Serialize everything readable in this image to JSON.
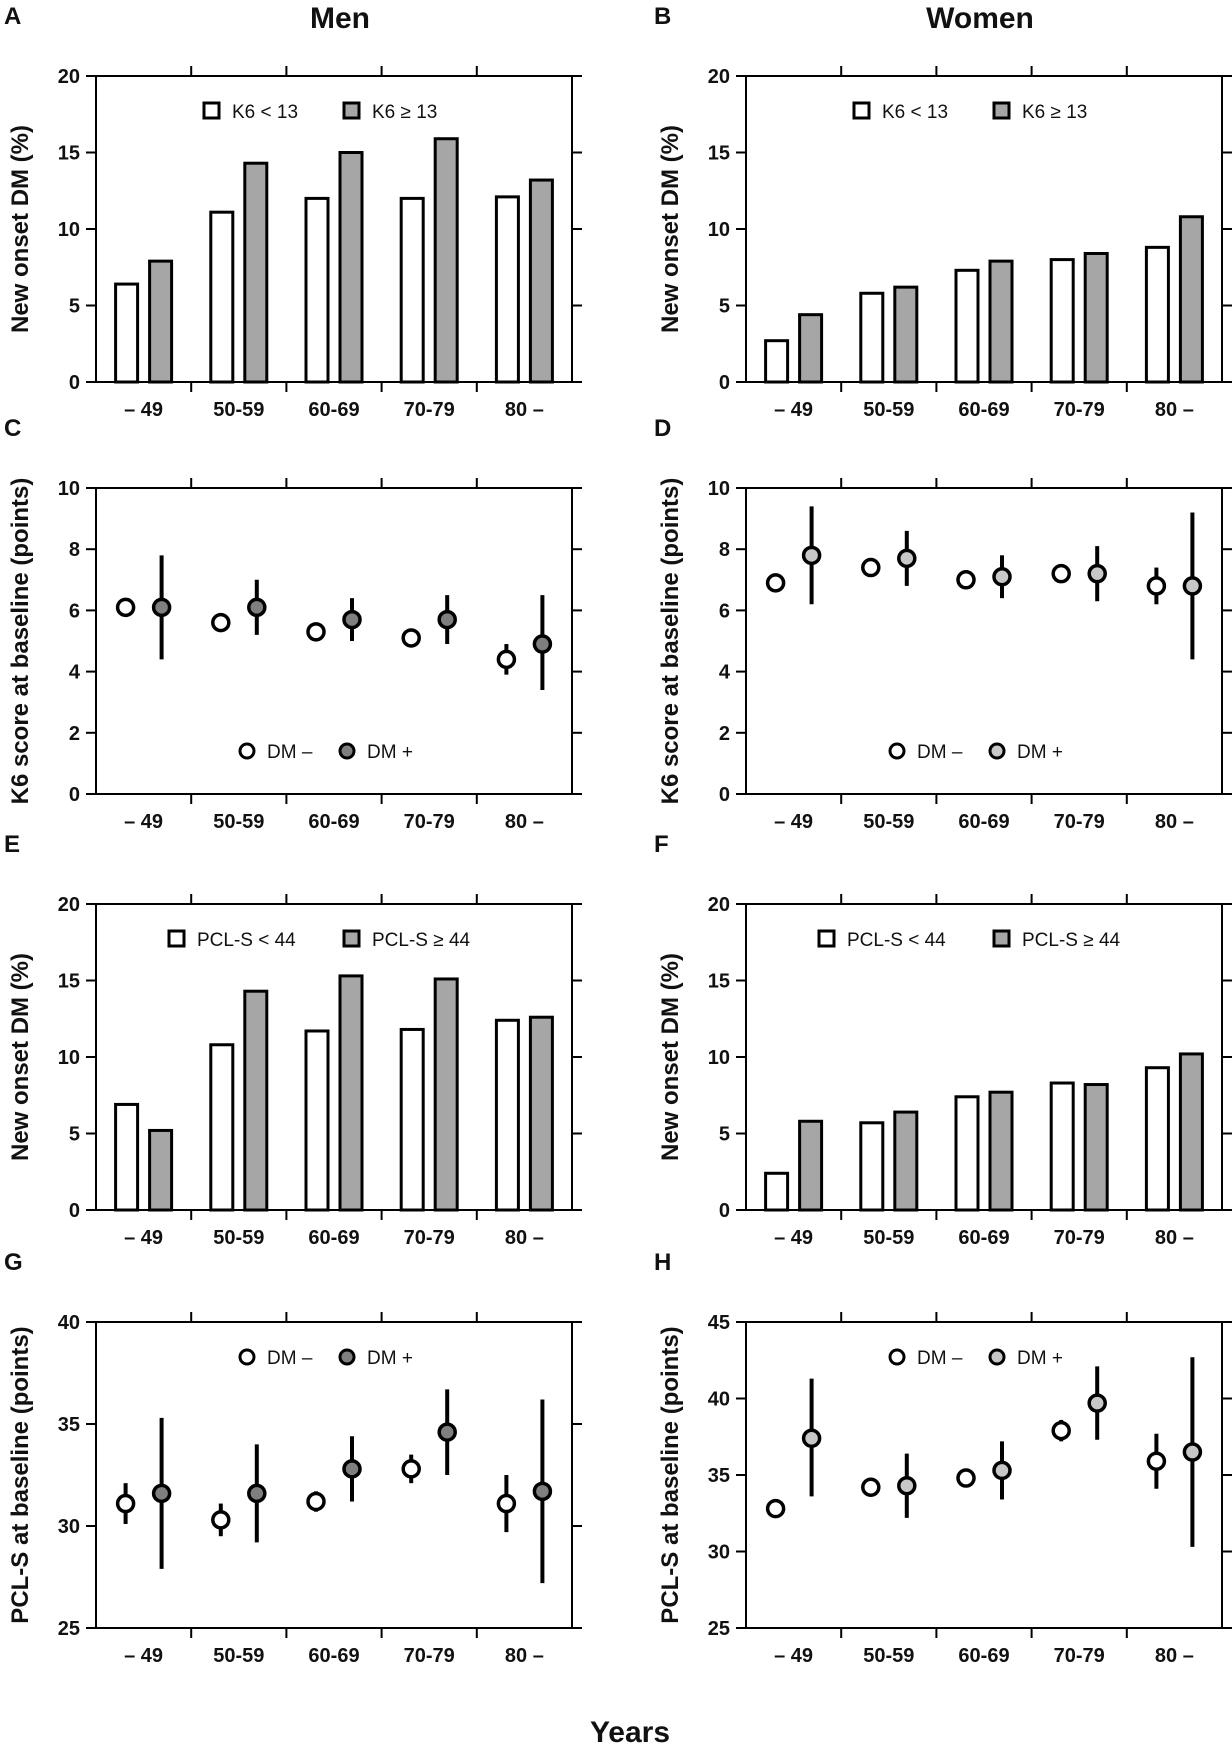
{
  "figure": {
    "column_titles": [
      "Men",
      "Women"
    ],
    "x_title": "Years"
  },
  "colors": {
    "white_fill": "#ffffff",
    "gray_fill": "#a6a6a6",
    "dark_fill": "#7f7f7f",
    "light_fill": "#c8c8c8",
    "stroke": "#000000"
  },
  "chart_data": [
    {
      "panel": "A",
      "type": "bar",
      "ylabel": "New onset DM (%)",
      "ylim": [
        0,
        20
      ],
      "yticks": [
        0,
        5,
        10,
        15,
        20
      ],
      "categories": [
        "– 49",
        "50-59",
        "60-69",
        "70-79",
        "80 –"
      ],
      "legend": [
        "K6 < 13",
        "K6 ≥ 13"
      ],
      "series": [
        {
          "name": "K6 < 13",
          "values": [
            6.4,
            11.1,
            12.0,
            12.0,
            12.1
          ]
        },
        {
          "name": "K6 ≥ 13",
          "values": [
            7.9,
            14.3,
            15.0,
            15.9,
            13.2
          ]
        }
      ]
    },
    {
      "panel": "B",
      "type": "bar",
      "ylabel": "New onset DM (%)",
      "ylim": [
        0,
        20
      ],
      "yticks": [
        0,
        5,
        10,
        15,
        20
      ],
      "categories": [
        "– 49",
        "50-59",
        "60-69",
        "70-79",
        "80 –"
      ],
      "legend": [
        "K6 < 13",
        "K6 ≥ 13"
      ],
      "series": [
        {
          "name": "K6 < 13",
          "values": [
            2.7,
            5.8,
            7.3,
            8.0,
            8.8
          ]
        },
        {
          "name": "K6 ≥ 13",
          "values": [
            4.4,
            6.2,
            7.9,
            8.4,
            10.8
          ]
        }
      ]
    },
    {
      "panel": "C",
      "type": "scatter",
      "ylabel": "K6 score at baseline (points)",
      "ylim": [
        0,
        10
      ],
      "yticks": [
        0,
        2,
        4,
        6,
        8,
        10
      ],
      "categories": [
        "– 49",
        "50-59",
        "60-69",
        "70-79",
        "80 –"
      ],
      "legend": [
        "DM –",
        "DM +"
      ],
      "series": [
        {
          "name": "DM –",
          "values": [
            6.1,
            5.6,
            5.3,
            5.1,
            4.4
          ],
          "lower": [
            5.8,
            5.4,
            5.1,
            4.9,
            3.9
          ],
          "upper": [
            6.4,
            5.8,
            5.5,
            5.3,
            4.9
          ]
        },
        {
          "name": "DM +",
          "values": [
            6.1,
            6.1,
            5.7,
            5.7,
            4.9
          ],
          "lower": [
            4.4,
            5.2,
            5.0,
            4.9,
            3.4
          ],
          "upper": [
            7.8,
            7.0,
            6.4,
            6.5,
            6.5
          ]
        }
      ]
    },
    {
      "panel": "D",
      "type": "scatter",
      "ylabel": "K6 score at baseline (points)",
      "ylim": [
        0,
        10
      ],
      "yticks": [
        0,
        2,
        4,
        6,
        8,
        10
      ],
      "categories": [
        "– 49",
        "50-59",
        "60-69",
        "70-79",
        "80 –"
      ],
      "legend": [
        "DM –",
        "DM +"
      ],
      "series": [
        {
          "name": "DM –",
          "values": [
            6.9,
            7.4,
            7.0,
            7.2,
            6.8
          ],
          "lower": [
            6.7,
            7.2,
            6.8,
            7.0,
            6.2
          ],
          "upper": [
            7.1,
            7.6,
            7.2,
            7.4,
            7.4
          ]
        },
        {
          "name": "DM +",
          "values": [
            7.8,
            7.7,
            7.1,
            7.2,
            6.8
          ],
          "lower": [
            6.2,
            6.8,
            6.4,
            6.3,
            4.4
          ],
          "upper": [
            9.4,
            8.6,
            7.8,
            8.1,
            9.2
          ]
        }
      ]
    },
    {
      "panel": "E",
      "type": "bar",
      "ylabel": "New onset DM (%)",
      "ylim": [
        0,
        20
      ],
      "yticks": [
        0,
        5,
        10,
        15,
        20
      ],
      "categories": [
        "– 49",
        "50-59",
        "60-69",
        "70-79",
        "80 –"
      ],
      "legend": [
        "PCL-S < 44",
        "PCL-S ≥ 44"
      ],
      "series": [
        {
          "name": "PCL-S < 44",
          "values": [
            6.9,
            10.8,
            11.7,
            11.8,
            12.4
          ]
        },
        {
          "name": "PCL-S ≥ 44",
          "values": [
            5.2,
            14.3,
            15.3,
            15.1,
            12.6
          ]
        }
      ]
    },
    {
      "panel": "F",
      "type": "bar",
      "ylabel": "New onset DM (%)",
      "ylim": [
        0,
        20
      ],
      "yticks": [
        0,
        5,
        10,
        15,
        20
      ],
      "categories": [
        "– 49",
        "50-59",
        "60-69",
        "70-79",
        "80 –"
      ],
      "legend": [
        "PCL-S < 44",
        "PCL-S ≥ 44"
      ],
      "series": [
        {
          "name": "PCL-S < 44",
          "values": [
            2.4,
            5.7,
            7.4,
            8.3,
            9.3
          ]
        },
        {
          "name": "PCL-S ≥ 44",
          "values": [
            5.8,
            6.4,
            7.7,
            8.2,
            10.2
          ]
        }
      ]
    },
    {
      "panel": "G",
      "type": "scatter",
      "ylabel": "PCL-S at baseline (points)",
      "ylim": [
        25,
        40
      ],
      "yticks": [
        25,
        30,
        35,
        40
      ],
      "categories": [
        "– 49",
        "50-59",
        "60-69",
        "70-79",
        "80 –"
      ],
      "legend": [
        "DM –",
        "DM +"
      ],
      "series": [
        {
          "name": "DM –",
          "values": [
            31.1,
            30.3,
            31.2,
            32.8,
            31.1
          ],
          "lower": [
            30.1,
            29.5,
            30.7,
            32.1,
            29.7
          ],
          "upper": [
            32.1,
            31.1,
            31.7,
            33.5,
            32.5
          ]
        },
        {
          "name": "DM +",
          "values": [
            31.6,
            31.6,
            32.8,
            34.6,
            31.7
          ],
          "lower": [
            27.9,
            29.2,
            31.2,
            32.5,
            27.2
          ],
          "upper": [
            35.3,
            34.0,
            34.4,
            36.7,
            36.2
          ]
        }
      ]
    },
    {
      "panel": "H",
      "type": "scatter",
      "ylabel": "PCL-S at baseline (points)",
      "ylim": [
        25,
        45
      ],
      "yticks": [
        25,
        30,
        35,
        40,
        45
      ],
      "categories": [
        "– 49",
        "50-59",
        "60-69",
        "70-79",
        "80 –"
      ],
      "legend": [
        "DM –",
        "DM +"
      ],
      "series": [
        {
          "name": "DM –",
          "values": [
            32.8,
            34.2,
            34.8,
            37.9,
            35.9
          ],
          "lower": [
            32.3,
            33.9,
            34.5,
            37.2,
            34.1
          ],
          "upper": [
            33.3,
            34.5,
            35.1,
            38.6,
            37.7
          ]
        },
        {
          "name": "DM +",
          "values": [
            37.4,
            34.3,
            35.3,
            39.7,
            36.5
          ],
          "lower": [
            33.6,
            32.2,
            33.4,
            37.3,
            30.3
          ],
          "upper": [
            41.3,
            36.4,
            37.2,
            42.1,
            42.7
          ]
        }
      ]
    }
  ]
}
